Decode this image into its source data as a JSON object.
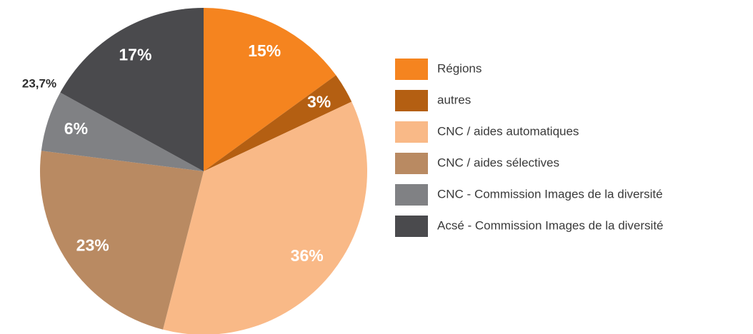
{
  "chart_data": {
    "type": "pie",
    "categories": [
      "Régions",
      "autres",
      "CNC / aides automatiques",
      "CNC / aides sélectives",
      "CNC - Commission Images de la diversité",
      "Acsé - Commission Images de la diversité"
    ],
    "values": [
      15,
      3,
      36,
      23,
      6,
      17
    ],
    "value_labels": [
      "15%",
      "3%",
      "36%",
      "23%",
      "6%",
      "17%"
    ],
    "colors": [
      "#f5841f",
      "#b45f12",
      "#f9b987",
      "#b98a62",
      "#808184",
      "#4a4a4d"
    ],
    "annotation": "23,7%",
    "legend": "right"
  }
}
